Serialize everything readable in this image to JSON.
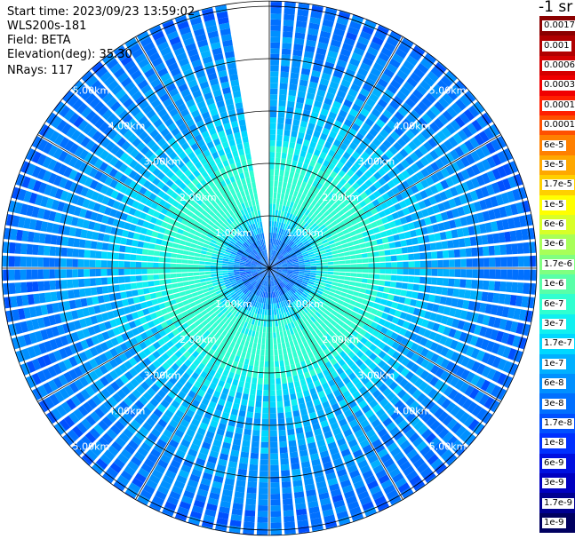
{
  "info": {
    "start_time": "Start time: 2023/09/23 13:59:02",
    "device": "WLS200s-181",
    "field": "Field: BETA",
    "elevation": "Elevation(deg): 35.30",
    "nrays": "NRays: 117"
  },
  "unit": "-1 sr",
  "chart_data": {
    "type": "heatmap",
    "projection": "polar",
    "range_labels": [
      "1.00km",
      "2.00km",
      "3.00km",
      "4.00km",
      "5.00km"
    ],
    "range_rings_km": [
      1,
      2,
      3,
      4,
      5
    ],
    "max_range_km": 5.1,
    "radials_deg": [
      0,
      30,
      60,
      90,
      120,
      150,
      180,
      210,
      240,
      270,
      300,
      330
    ],
    "gap_azimuth_deg": [
      350,
      359
    ],
    "colorbar": [
      {
        "label": "0.0017",
        "color": "#8b0000"
      },
      {
        "label": "0.001",
        "color": "#b00000"
      },
      {
        "label": "0.0006",
        "color": "#d40000"
      },
      {
        "label": "0.0003",
        "color": "#f00000"
      },
      {
        "label": "0.00017",
        "color": "#ff2000"
      },
      {
        "label": "0.0001",
        "color": "#ff5000"
      },
      {
        "label": "6e-5",
        "color": "#ff8000"
      },
      {
        "label": "3e-5",
        "color": "#ffa800"
      },
      {
        "label": "1.7e-5",
        "color": "#ffd000"
      },
      {
        "label": "1e-5",
        "color": "#ffff00"
      },
      {
        "label": "6e-6",
        "color": "#d8ff28"
      },
      {
        "label": "3e-6",
        "color": "#a8ff58"
      },
      {
        "label": "1.7e-6",
        "color": "#80ff80"
      },
      {
        "label": "1e-6",
        "color": "#58ffa8"
      },
      {
        "label": "6e-7",
        "color": "#30ffd0"
      },
      {
        "label": "3e-7",
        "color": "#10f0f0"
      },
      {
        "label": "1.7e-7",
        "color": "#00d8ff"
      },
      {
        "label": "1e-7",
        "color": "#00b0ff"
      },
      {
        "label": "6e-8",
        "color": "#0090ff"
      },
      {
        "label": "3e-8",
        "color": "#0070ff"
      },
      {
        "label": "1.7e-8",
        "color": "#0050ff"
      },
      {
        "label": "1e-8",
        "color": "#0030ff"
      },
      {
        "label": "6e-9",
        "color": "#0010e0"
      },
      {
        "label": "3e-9",
        "color": "#0000c0"
      },
      {
        "label": "1.7e-9",
        "color": "#000090"
      },
      {
        "label": "1e-9",
        "color": "#000060"
      }
    ],
    "range_profile_approx": [
      {
        "range_km": 0.5,
        "level": "3e-8"
      },
      {
        "range_km": 1.0,
        "level": "3e-7"
      },
      {
        "range_km": 1.5,
        "level": "1e-6"
      },
      {
        "range_km": 2.0,
        "level": "6e-7"
      },
      {
        "range_km": 2.5,
        "level": "1.7e-7"
      },
      {
        "range_km": 3.0,
        "level": "1e-7"
      },
      {
        "range_km": 4.0,
        "level": "6e-8"
      },
      {
        "range_km": 5.0,
        "level": "3e-8"
      }
    ]
  }
}
